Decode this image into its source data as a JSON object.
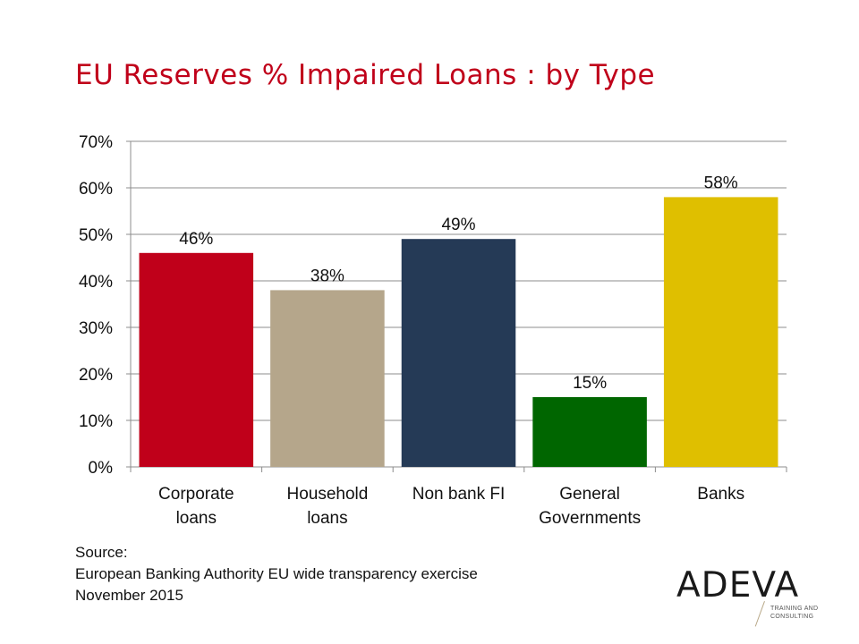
{
  "title": "EU Reserves % Impaired Loans : by Type",
  "chart_data": {
    "type": "bar",
    "categories": [
      [
        "Corporate",
        "loans"
      ],
      [
        "Household",
        "loans"
      ],
      [
        "Non bank FI"
      ],
      [
        "General",
        "Governments"
      ],
      [
        "Banks"
      ]
    ],
    "values": [
      46,
      38,
      49,
      15,
      58
    ],
    "data_labels": [
      "46%",
      "38%",
      "49%",
      "15%",
      "58%"
    ],
    "colors": [
      "#c0001a",
      "#b5a68b",
      "#253a56",
      "#006600",
      "#dfbf00"
    ],
    "ylim": [
      0,
      70
    ],
    "yticks": [
      0,
      10,
      20,
      30,
      40,
      50,
      60,
      70
    ],
    "ytick_labels": [
      "0%",
      "10%",
      "20%",
      "30%",
      "40%",
      "50%",
      "60%",
      "70%"
    ],
    "grid": true,
    "legend": "none"
  },
  "source": {
    "lines": [
      "Source:",
      "European Banking Authority EU wide transparency exercise",
      "November 2015"
    ]
  },
  "logo": {
    "wordmark": "ADEVA",
    "tagline_lines": [
      "TRAINING AND",
      "CONSULTING"
    ]
  },
  "colors": {
    "title": "#c0001a",
    "grid": "#8c8c8c"
  }
}
